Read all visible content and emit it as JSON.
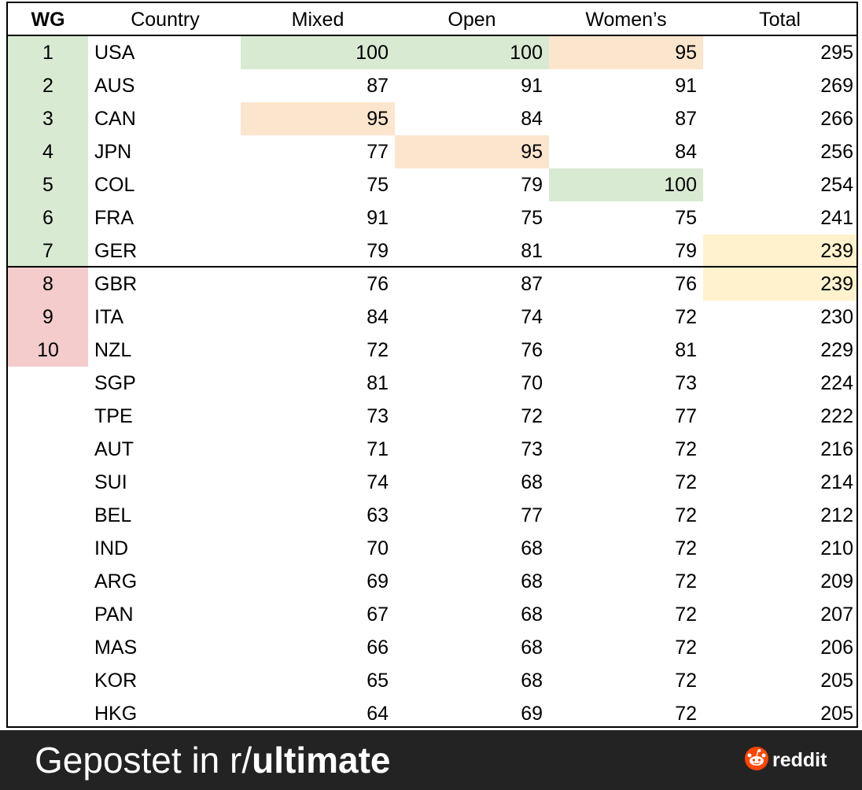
{
  "table": {
    "headers": [
      "WG",
      "Country",
      "Mixed",
      "Open",
      "Women’s",
      "Total"
    ],
    "rows": [
      [
        "1",
        "USA",
        "100",
        "100",
        "95",
        "295"
      ],
      [
        "2",
        "AUS",
        "87",
        "91",
        "91",
        "269"
      ],
      [
        "3",
        "CAN",
        "95",
        "84",
        "87",
        "266"
      ],
      [
        "4",
        "JPN",
        "77",
        "95",
        "84",
        "256"
      ],
      [
        "5",
        "COL",
        "75",
        "79",
        "100",
        "254"
      ],
      [
        "6",
        "FRA",
        "91",
        "75",
        "75",
        "241"
      ],
      [
        "7",
        "GER",
        "79",
        "81",
        "79",
        "239"
      ],
      [
        "8",
        "GBR",
        "76",
        "87",
        "76",
        "239"
      ],
      [
        "9",
        "ITA",
        "84",
        "74",
        "72",
        "230"
      ],
      [
        "10",
        "NZL",
        "72",
        "76",
        "81",
        "229"
      ],
      [
        "",
        "SGP",
        "81",
        "70",
        "73",
        "224"
      ],
      [
        "",
        "TPE",
        "73",
        "72",
        "77",
        "222"
      ],
      [
        "",
        "AUT",
        "71",
        "73",
        "72",
        "216"
      ],
      [
        "",
        "SUI",
        "74",
        "68",
        "72",
        "214"
      ],
      [
        "",
        "BEL",
        "63",
        "77",
        "72",
        "212"
      ],
      [
        "",
        "IND",
        "70",
        "68",
        "72",
        "210"
      ],
      [
        "",
        "ARG",
        "69",
        "68",
        "72",
        "209"
      ],
      [
        "",
        "PAN",
        "67",
        "68",
        "72",
        "207"
      ],
      [
        "",
        "MAS",
        "66",
        "68",
        "72",
        "206"
      ],
      [
        "",
        "KOR",
        "65",
        "68",
        "72",
        "205"
      ],
      [
        "",
        "HKG",
        "64",
        "69",
        "72",
        "205"
      ]
    ],
    "highlights": [
      {
        "row": 0,
        "col": 2,
        "color": "green"
      },
      {
        "row": 0,
        "col": 3,
        "color": "green"
      },
      {
        "row": 0,
        "col": 4,
        "color": "orange"
      },
      {
        "row": 2,
        "col": 2,
        "color": "orange"
      },
      {
        "row": 3,
        "col": 3,
        "color": "orange"
      },
      {
        "row": 4,
        "col": 4,
        "color": "green"
      },
      {
        "row": 6,
        "col": 5,
        "color": "yellow"
      },
      {
        "row": 7,
        "col": 5,
        "color": "yellow"
      }
    ],
    "qualified_rows": 7,
    "eliminated_rows": 3
  },
  "colors": {
    "green": "#d9ead3",
    "orange": "#fce5cd",
    "yellow": "#fff2cc",
    "red": "#f4cccc",
    "footer_bg": "#232323",
    "reddit_orange": "#ff4500"
  },
  "footer": {
    "prefix": "Gepostet in r/",
    "subreddit": "ultimate",
    "brand_icon": "reddit-snoo-icon",
    "brand_label": "reddit"
  }
}
